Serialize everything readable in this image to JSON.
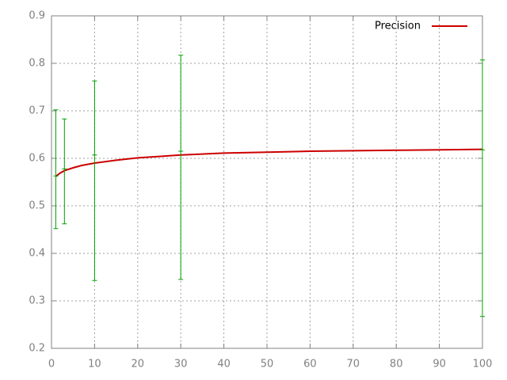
{
  "chart_data": {
    "type": "line",
    "xlim": [
      0,
      100
    ],
    "xticks": [
      0,
      10,
      20,
      30,
      40,
      50,
      60,
      70,
      80,
      90,
      100
    ],
    "ylim": [
      0.2,
      0.9
    ],
    "yticks": [
      0.2,
      0.3,
      0.4,
      0.5,
      0.6,
      0.7,
      0.8,
      0.9
    ],
    "grid": true,
    "legend": "top-right",
    "series": [
      {
        "name": "Precision",
        "color": "#cc0000",
        "x": [
          1,
          2,
          3,
          5,
          7,
          10,
          15,
          20,
          25,
          30,
          40,
          50,
          60,
          70,
          80,
          90,
          100
        ],
        "values": [
          0.562,
          0.569,
          0.574,
          0.58,
          0.585,
          0.59,
          0.596,
          0.601,
          0.604,
          0.607,
          0.611,
          0.613,
          0.615,
          0.616,
          0.617,
          0.618,
          0.619
        ]
      },
      {
        "type": "errorbar",
        "color": "#00a000",
        "x": [
          1,
          3,
          10,
          30,
          100
        ],
        "values": [
          0.563,
          0.578,
          0.607,
          0.615,
          0.618
        ],
        "low": [
          0.452,
          0.462,
          0.343,
          0.345,
          0.267
        ],
        "high": [
          0.702,
          0.683,
          0.763,
          0.817,
          0.807
        ]
      }
    ]
  }
}
